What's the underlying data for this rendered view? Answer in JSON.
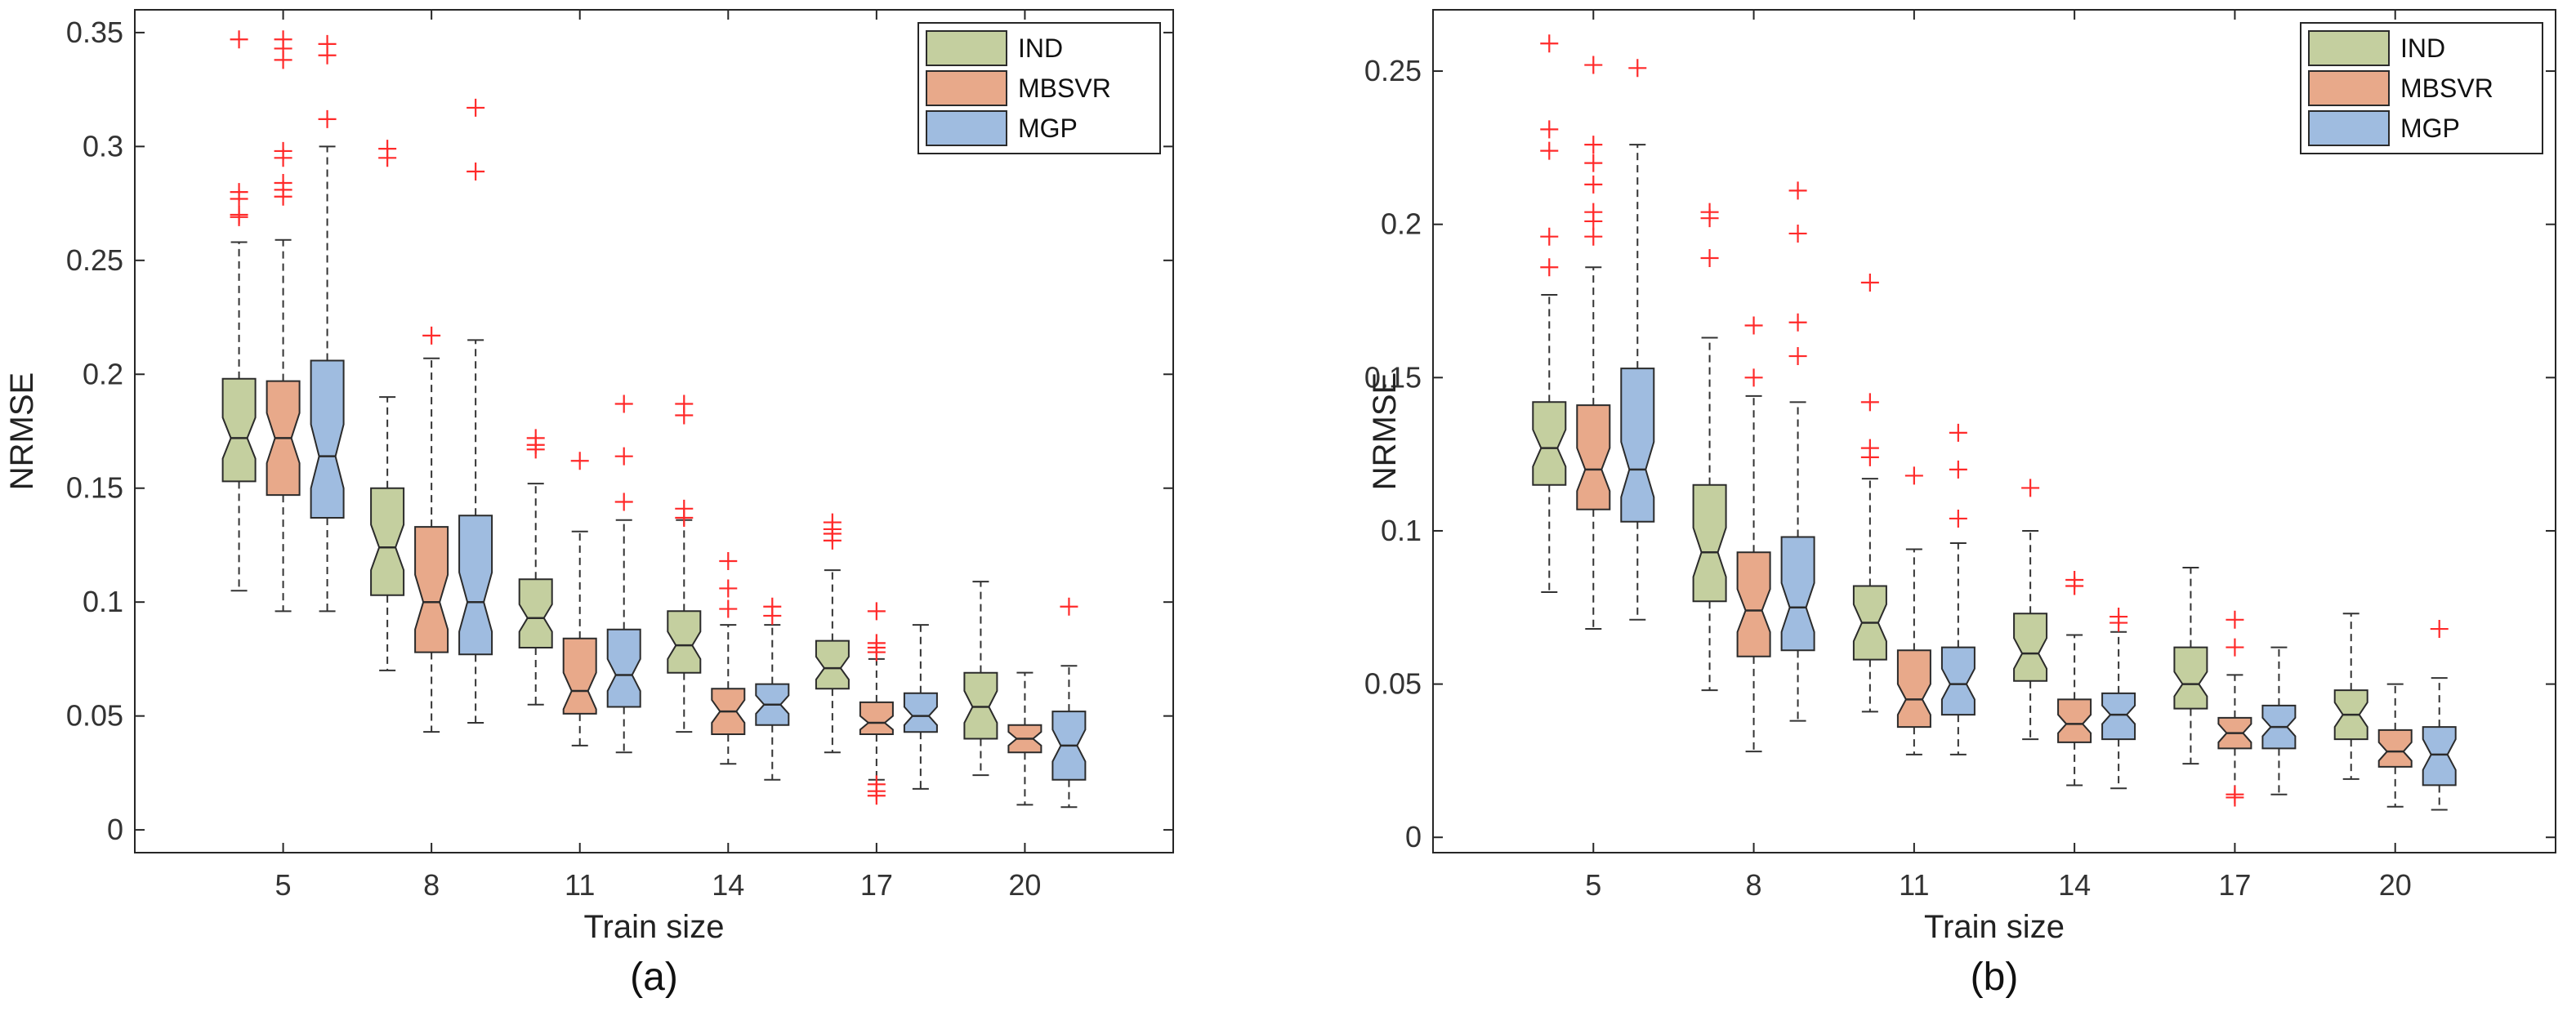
{
  "chart_data": [
    {
      "type": "box",
      "panel_label": "(a)",
      "xlabel": "Train size",
      "ylabel": "NRMSE",
      "title": "",
      "ylim": [
        -0.01,
        0.36
      ],
      "yticks": [
        0,
        0.05,
        0.1,
        0.15,
        0.2,
        0.25,
        0.3,
        0.35
      ],
      "ytick_labels": [
        "0",
        "0.05",
        "0.1",
        "0.15",
        "0.2",
        "0.25",
        "0.3",
        "0.35"
      ],
      "categories": [
        "5",
        "8",
        "11",
        "14",
        "17",
        "20"
      ],
      "legend_position": "top-right",
      "grid": false,
      "notched": true,
      "series": [
        {
          "name": "IND",
          "color": "#c4cf9f",
          "boxes": [
            {
              "whisker_low": 0.105,
              "q1": 0.153,
              "median": 0.172,
              "q3": 0.198,
              "whisker_high": 0.258,
              "notch_low": 0.163,
              "notch_high": 0.181,
              "outliers": [
                0.347,
                0.28,
                0.277,
                0.27,
                0.269
              ]
            },
            {
              "whisker_low": 0.07,
              "q1": 0.103,
              "median": 0.124,
              "q3": 0.15,
              "whisker_high": 0.19,
              "notch_low": 0.114,
              "notch_high": 0.134,
              "outliers": [
                0.299,
                0.295
              ]
            },
            {
              "whisker_low": 0.055,
              "q1": 0.08,
              "median": 0.093,
              "q3": 0.11,
              "whisker_high": 0.152,
              "notch_low": 0.087,
              "notch_high": 0.099,
              "outliers": [
                0.172,
                0.169,
                0.167
              ]
            },
            {
              "whisker_low": 0.043,
              "q1": 0.069,
              "median": 0.081,
              "q3": 0.096,
              "whisker_high": 0.136,
              "notch_low": 0.075,
              "notch_high": 0.087,
              "outliers": [
                0.187,
                0.182,
                0.141,
                0.137
              ]
            },
            {
              "whisker_low": 0.034,
              "q1": 0.062,
              "median": 0.071,
              "q3": 0.083,
              "whisker_high": 0.114,
              "notch_low": 0.066,
              "notch_high": 0.076,
              "outliers": [
                0.135,
                0.132,
                0.13,
                0.127
              ]
            },
            {
              "whisker_low": 0.024,
              "q1": 0.04,
              "median": 0.054,
              "q3": 0.069,
              "whisker_high": 0.109,
              "notch_low": 0.047,
              "notch_high": 0.061,
              "outliers": []
            }
          ]
        },
        {
          "name": "MBSVR",
          "color": "#e8a98a",
          "boxes": [
            {
              "whisker_low": 0.096,
              "q1": 0.147,
              "median": 0.172,
              "q3": 0.197,
              "whisker_high": 0.259,
              "notch_low": 0.161,
              "notch_high": 0.183,
              "outliers": [
                0.347,
                0.343,
                0.338,
                0.298,
                0.295,
                0.284,
                0.281,
                0.278
              ]
            },
            {
              "whisker_low": 0.043,
              "q1": 0.078,
              "median": 0.1,
              "q3": 0.133,
              "whisker_high": 0.207,
              "notch_low": 0.088,
              "notch_high": 0.112,
              "outliers": [
                0.217
              ]
            },
            {
              "whisker_low": 0.037,
              "q1": 0.051,
              "median": 0.061,
              "q3": 0.084,
              "whisker_high": 0.131,
              "notch_low": 0.053,
              "notch_high": 0.069,
              "outliers": [
                0.162
              ]
            },
            {
              "whisker_low": 0.029,
              "q1": 0.042,
              "median": 0.052,
              "q3": 0.062,
              "whisker_high": 0.09,
              "notch_low": 0.047,
              "notch_high": 0.057,
              "outliers": [
                0.118,
                0.106,
                0.097
              ]
            },
            {
              "whisker_low": 0.022,
              "q1": 0.042,
              "median": 0.047,
              "q3": 0.056,
              "whisker_high": 0.075,
              "notch_low": 0.044,
              "notch_high": 0.05,
              "outliers": [
                0.096,
                0.082,
                0.08,
                0.078,
                0.02,
                0.017,
                0.015
              ]
            },
            {
              "whisker_low": 0.011,
              "q1": 0.034,
              "median": 0.04,
              "q3": 0.046,
              "whisker_high": 0.069,
              "notch_low": 0.037,
              "notch_high": 0.043,
              "outliers": []
            }
          ]
        },
        {
          "name": "MGP",
          "color": "#9fbce0",
          "boxes": [
            {
              "whisker_low": 0.096,
              "q1": 0.137,
              "median": 0.164,
              "q3": 0.206,
              "whisker_high": 0.3,
              "notch_low": 0.15,
              "notch_high": 0.178,
              "outliers": [
                0.345,
                0.34,
                0.312
              ]
            },
            {
              "whisker_low": 0.047,
              "q1": 0.077,
              "median": 0.1,
              "q3": 0.138,
              "whisker_high": 0.215,
              "notch_low": 0.087,
              "notch_high": 0.113,
              "outliers": [
                0.317,
                0.289
              ]
            },
            {
              "whisker_low": 0.034,
              "q1": 0.054,
              "median": 0.068,
              "q3": 0.088,
              "whisker_high": 0.136,
              "notch_low": 0.061,
              "notch_high": 0.075,
              "outliers": [
                0.187,
                0.164,
                0.144
              ]
            },
            {
              "whisker_low": 0.022,
              "q1": 0.046,
              "median": 0.055,
              "q3": 0.064,
              "whisker_high": 0.09,
              "notch_low": 0.051,
              "notch_high": 0.059,
              "outliers": [
                0.098,
                0.094
              ]
            },
            {
              "whisker_low": 0.018,
              "q1": 0.043,
              "median": 0.05,
              "q3": 0.06,
              "whisker_high": 0.09,
              "notch_low": 0.046,
              "notch_high": 0.054,
              "outliers": []
            },
            {
              "whisker_low": 0.01,
              "q1": 0.022,
              "median": 0.037,
              "q3": 0.052,
              "whisker_high": 0.072,
              "notch_low": 0.03,
              "notch_high": 0.044,
              "outliers": [
                0.098
              ]
            }
          ]
        }
      ]
    },
    {
      "type": "box",
      "panel_label": "(b)",
      "xlabel": "Train size",
      "ylabel": "NRMSE",
      "title": "",
      "ylim": [
        -0.005,
        0.27
      ],
      "yticks": [
        0,
        0.05,
        0.1,
        0.15,
        0.2,
        0.25
      ],
      "ytick_labels": [
        "0",
        "0.05",
        "0.1",
        "0.15",
        "0.2",
        "0.25"
      ],
      "categories": [
        "5",
        "8",
        "11",
        "14",
        "17",
        "20"
      ],
      "legend_position": "top-right",
      "grid": false,
      "notched": true,
      "series": [
        {
          "name": "IND",
          "color": "#c4cf9f",
          "boxes": [
            {
              "whisker_low": 0.08,
              "q1": 0.115,
              "median": 0.127,
              "q3": 0.142,
              "whisker_high": 0.177,
              "notch_low": 0.121,
              "notch_high": 0.133,
              "outliers": [
                0.259,
                0.231,
                0.224,
                0.196,
                0.186
              ]
            },
            {
              "whisker_low": 0.048,
              "q1": 0.077,
              "median": 0.093,
              "q3": 0.115,
              "whisker_high": 0.163,
              "notch_low": 0.085,
              "notch_high": 0.101,
              "outliers": [
                0.204,
                0.202,
                0.189
              ]
            },
            {
              "whisker_low": 0.041,
              "q1": 0.058,
              "median": 0.07,
              "q3": 0.082,
              "whisker_high": 0.117,
              "notch_low": 0.064,
              "notch_high": 0.076,
              "outliers": [
                0.181,
                0.142,
                0.127,
                0.124
              ]
            },
            {
              "whisker_low": 0.032,
              "q1": 0.051,
              "median": 0.06,
              "q3": 0.073,
              "whisker_high": 0.1,
              "notch_low": 0.055,
              "notch_high": 0.065,
              "outliers": [
                0.114
              ]
            },
            {
              "whisker_low": 0.024,
              "q1": 0.042,
              "median": 0.05,
              "q3": 0.062,
              "whisker_high": 0.088,
              "notch_low": 0.046,
              "notch_high": 0.054,
              "outliers": []
            },
            {
              "whisker_low": 0.019,
              "q1": 0.032,
              "median": 0.04,
              "q3": 0.048,
              "whisker_high": 0.073,
              "notch_low": 0.036,
              "notch_high": 0.044,
              "outliers": []
            }
          ]
        },
        {
          "name": "MBSVR",
          "color": "#e8a98a",
          "boxes": [
            {
              "whisker_low": 0.068,
              "q1": 0.107,
              "median": 0.12,
              "q3": 0.141,
              "whisker_high": 0.186,
              "notch_low": 0.113,
              "notch_high": 0.127,
              "outliers": [
                0.252,
                0.226,
                0.22,
                0.213,
                0.204,
                0.201,
                0.196
              ]
            },
            {
              "whisker_low": 0.028,
              "q1": 0.059,
              "median": 0.074,
              "q3": 0.093,
              "whisker_high": 0.144,
              "notch_low": 0.067,
              "notch_high": 0.081,
              "outliers": [
                0.167,
                0.15
              ]
            },
            {
              "whisker_low": 0.027,
              "q1": 0.036,
              "median": 0.045,
              "q3": 0.061,
              "whisker_high": 0.094,
              "notch_low": 0.04,
              "notch_high": 0.05,
              "outliers": [
                0.118
              ]
            },
            {
              "whisker_low": 0.017,
              "q1": 0.031,
              "median": 0.037,
              "q3": 0.045,
              "whisker_high": 0.066,
              "notch_low": 0.034,
              "notch_high": 0.04,
              "outliers": [
                0.084,
                0.082
              ]
            },
            {
              "whisker_low": 0.013,
              "q1": 0.029,
              "median": 0.034,
              "q3": 0.039,
              "whisker_high": 0.053,
              "notch_low": 0.031,
              "notch_high": 0.037,
              "outliers": [
                0.071,
                0.062,
                0.014,
                0.013
              ]
            },
            {
              "whisker_low": 0.01,
              "q1": 0.023,
              "median": 0.028,
              "q3": 0.035,
              "whisker_high": 0.05,
              "notch_low": 0.025,
              "notch_high": 0.031,
              "outliers": []
            }
          ]
        },
        {
          "name": "MGP",
          "color": "#9fbce0",
          "boxes": [
            {
              "whisker_low": 0.071,
              "q1": 0.103,
              "median": 0.12,
              "q3": 0.153,
              "whisker_high": 0.226,
              "notch_low": 0.111,
              "notch_high": 0.129,
              "outliers": [
                0.251
              ]
            },
            {
              "whisker_low": 0.038,
              "q1": 0.061,
              "median": 0.075,
              "q3": 0.098,
              "whisker_high": 0.142,
              "notch_low": 0.067,
              "notch_high": 0.083,
              "outliers": [
                0.211,
                0.197,
                0.168,
                0.157
              ]
            },
            {
              "whisker_low": 0.027,
              "q1": 0.04,
              "median": 0.05,
              "q3": 0.062,
              "whisker_high": 0.096,
              "notch_low": 0.045,
              "notch_high": 0.055,
              "outliers": [
                0.132,
                0.12,
                0.104
              ]
            },
            {
              "whisker_low": 0.016,
              "q1": 0.032,
              "median": 0.04,
              "q3": 0.047,
              "whisker_high": 0.067,
              "notch_low": 0.037,
              "notch_high": 0.043,
              "outliers": [
                0.072,
                0.07
              ]
            },
            {
              "whisker_low": 0.014,
              "q1": 0.029,
              "median": 0.036,
              "q3": 0.043,
              "whisker_high": 0.062,
              "notch_low": 0.033,
              "notch_high": 0.039,
              "outliers": []
            },
            {
              "whisker_low": 0.009,
              "q1": 0.017,
              "median": 0.027,
              "q3": 0.036,
              "whisker_high": 0.052,
              "notch_low": 0.022,
              "notch_high": 0.032,
              "outliers": [
                0.068
              ]
            }
          ]
        }
      ]
    }
  ]
}
